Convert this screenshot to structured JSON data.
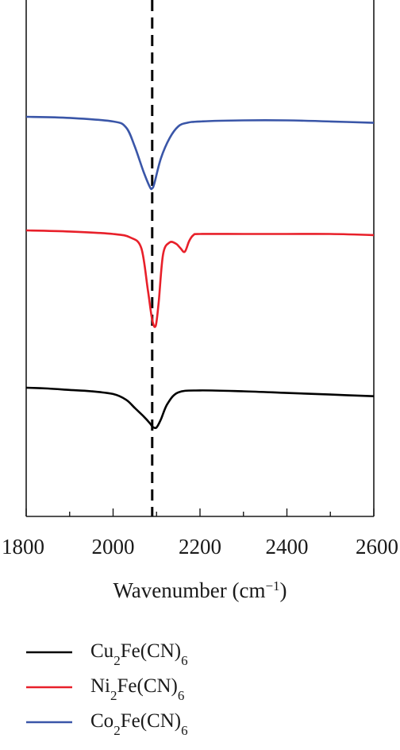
{
  "chart_data": {
    "type": "line",
    "xlabel": "Wavenumber (cm",
    "xlabel_sup": "−1",
    "xlabel_close": ")",
    "xlim": [
      1800,
      2600
    ],
    "xticks": [
      1800,
      2000,
      2200,
      2400,
      2600
    ],
    "y_axis": "unlabeled, arbitrary transmittance (curves offset vertically)",
    "reference_line": {
      "x": 2090,
      "style": "dashed"
    },
    "legend_position": "bottom",
    "series": [
      {
        "name": "Cu",
        "name_sub": "2",
        "name_rest": "Fe(CN)",
        "name_sub2": "6",
        "color": "#000000",
        "offset": 0.0,
        "x": [
          1800,
          1850,
          1900,
          1950,
          2000,
          2030,
          2050,
          2070,
          2085,
          2092,
          2100,
          2110,
          2125,
          2150,
          2200,
          2300,
          2400,
          2500,
          2600
        ],
        "y": [
          0.0,
          -0.3,
          -0.8,
          -1.3,
          -2.3,
          -4.4,
          -7.4,
          -10.4,
          -13.0,
          -14.4,
          -14.5,
          -11.6,
          -5.9,
          -1.7,
          -1.0,
          -1.3,
          -1.9,
          -2.5,
          -3.1
        ]
      },
      {
        "name": "Ni",
        "name_sub": "2",
        "name_rest": "Fe(CN)",
        "name_sub2": "6",
        "color": "#e8202a",
        "offset": 0.0,
        "x": [
          1800,
          1900,
          2000,
          2040,
          2065,
          2080,
          2090,
          2098,
          2105,
          2115,
          2130,
          2145,
          2155,
          2165,
          2175,
          2185,
          2200,
          2300,
          2400,
          2500,
          2600
        ],
        "y": [
          0.0,
          -0.4,
          -1.3,
          -2.6,
          -6.5,
          -21.7,
          -32.6,
          -34.8,
          -26.1,
          -8.7,
          -4.4,
          -4.9,
          -6.5,
          -7.8,
          -3.9,
          -1.7,
          -1.3,
          -1.3,
          -1.3,
          -1.3,
          -1.7
        ]
      },
      {
        "name": "Co",
        "name_sub": "2",
        "name_rest": "Fe(CN)",
        "name_sub2": "6",
        "color": "#3a56a8",
        "offset": 0.0,
        "x": [
          1800,
          1900,
          2000,
          2030,
          2050,
          2070,
          2085,
          2090,
          2095,
          2110,
          2130,
          2150,
          2170,
          2200,
          2300,
          2400,
          2500,
          2600
        ],
        "y": [
          0.0,
          -0.4,
          -1.7,
          -3.9,
          -10.9,
          -20.0,
          -25.7,
          -26.1,
          -24.3,
          -15.2,
          -7.8,
          -3.5,
          -2.2,
          -1.7,
          -1.3,
          -1.3,
          -1.7,
          -2.2
        ]
      }
    ]
  }
}
